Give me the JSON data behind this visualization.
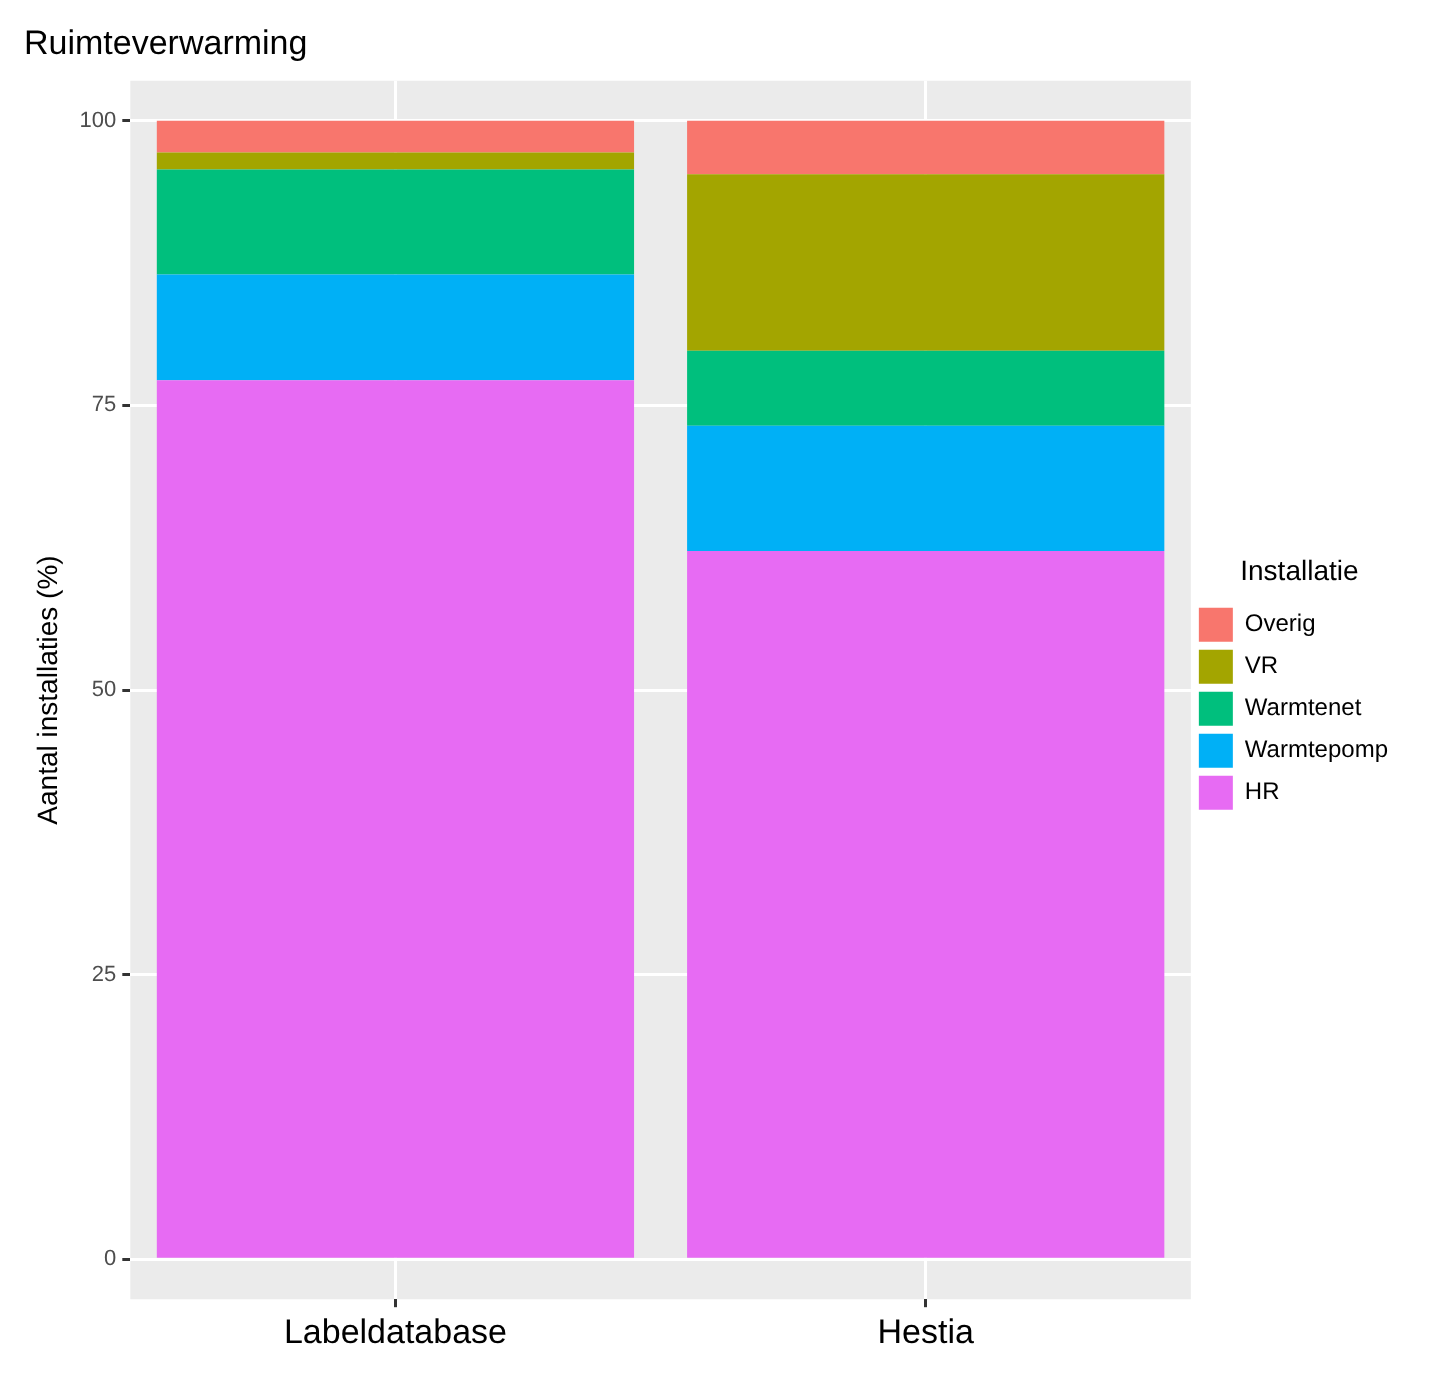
{
  "chart_data": {
    "type": "bar",
    "title": "Ruimteverwarming",
    "ylabel": "Aantal installaties (%)",
    "legend_title": "Installatie",
    "categories": [
      "Labeldatabase",
      "Hestia"
    ],
    "stacked": true,
    "ylim": [
      -3.5,
      103.5
    ],
    "yticks": [
      0,
      25,
      50,
      75,
      100
    ],
    "grid": true,
    "legend": "right",
    "series": [
      {
        "name": "HR",
        "color": "#e76bf3",
        "values": [
          77.2,
          62.2
        ]
      },
      {
        "name": "Warmtepomp",
        "color": "#00b0f6",
        "values": [
          9.3,
          11.0
        ]
      },
      {
        "name": "Warmtenet",
        "color": "#00bf7d",
        "values": [
          9.2,
          6.6
        ]
      },
      {
        "name": "VR",
        "color": "#a3a500",
        "values": [
          1.5,
          15.5
        ]
      },
      {
        "name": "Overig",
        "color": "#f8766d",
        "values": [
          2.8,
          4.7
        ]
      }
    ]
  }
}
